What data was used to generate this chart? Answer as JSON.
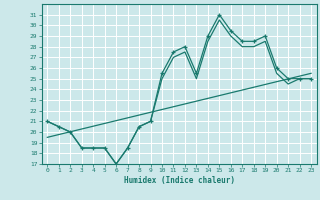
{
  "xlabel": "Humidex (Indice chaleur)",
  "xlim": [
    -0.5,
    23.5
  ],
  "ylim": [
    17,
    32
  ],
  "yticks": [
    17,
    18,
    19,
    20,
    21,
    22,
    23,
    24,
    25,
    26,
    27,
    28,
    29,
    30,
    31
  ],
  "xticks": [
    0,
    1,
    2,
    3,
    4,
    5,
    6,
    7,
    8,
    9,
    10,
    11,
    12,
    13,
    14,
    15,
    16,
    17,
    18,
    19,
    20,
    21,
    22,
    23
  ],
  "line_color": "#1a7a6e",
  "bg_color": "#cce8ea",
  "grid_color": "#b0d8dc",
  "line1_x": [
    0,
    1,
    2,
    3,
    4,
    5,
    6,
    7,
    8,
    9,
    10,
    11,
    12,
    13,
    14,
    15,
    16,
    17,
    18,
    19,
    20,
    21,
    22,
    23
  ],
  "line1_y": [
    21,
    20.5,
    20,
    18.5,
    18.5,
    18.5,
    17,
    18.5,
    20.5,
    21,
    25.5,
    27.5,
    28,
    25.5,
    29,
    31,
    29.5,
    28.5,
    28.5,
    29,
    26,
    25,
    25,
    25
  ],
  "line2_x": [
    0,
    1,
    2,
    3,
    4,
    5,
    6,
    7,
    8,
    9,
    10,
    11,
    12,
    13,
    14,
    15,
    16,
    17,
    18,
    19,
    20,
    21,
    22,
    23
  ],
  "line2_y": [
    21,
    20.5,
    20,
    18.5,
    18.5,
    18.5,
    17,
    18.5,
    20.5,
    21,
    25.0,
    27.0,
    27.5,
    25.0,
    28.5,
    30.5,
    29.0,
    28.0,
    28.0,
    28.5,
    25.5,
    24.5,
    25,
    25
  ],
  "line3_x": [
    0,
    23
  ],
  "line3_y": [
    19.5,
    25.5
  ]
}
